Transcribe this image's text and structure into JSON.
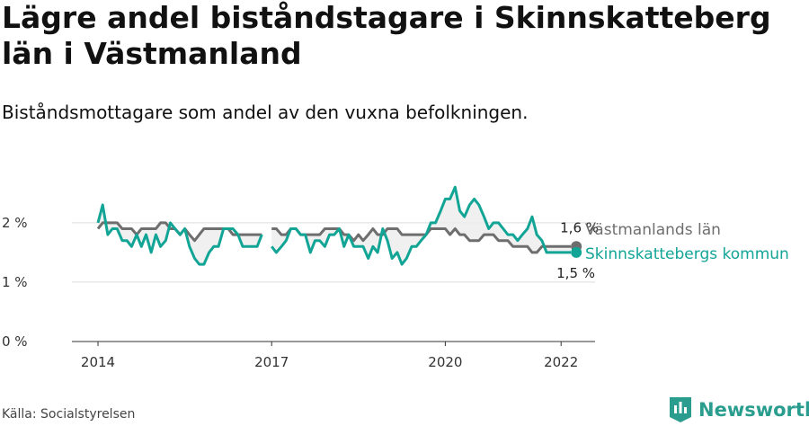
{
  "header": {
    "title": "Lägre andel biståndstagare i Skinnskatteberg län i Västmanland",
    "subtitle": "Biståndsmottagare som andel av den vuxna befolkningen."
  },
  "footer": {
    "source": "Källa: Socialstyrelsen",
    "brand": "Newsworthy"
  },
  "colors": {
    "lan": "#6e6e6e",
    "kommun": "#12a596",
    "grid": "#dddddd",
    "fill": "#ececec"
  },
  "chart_data": {
    "type": "line",
    "ylim": [
      0,
      2.8
    ],
    "yticks": [
      {
        "v": 0,
        "label": "0 %"
      },
      {
        "v": 1,
        "label": "1 %"
      },
      {
        "v": 2,
        "label": "2 %"
      }
    ],
    "xlim": [
      2014.0,
      2022.7
    ],
    "xticks": [
      {
        "v": 2014,
        "label": "2014"
      },
      {
        "v": 2017,
        "label": "2017"
      },
      {
        "v": 2020,
        "label": "2020"
      },
      {
        "v": 2022,
        "label": "2022"
      }
    ],
    "series": [
      {
        "key": "lan",
        "name": "Västmanlands län",
        "end_label": "1,6 %",
        "x": [
          2014.0,
          2014.08,
          2014.17,
          2014.25,
          2014.33,
          2014.42,
          2014.5,
          2014.58,
          2014.67,
          2014.75,
          2014.83,
          2014.92,
          2015.0,
          2015.08,
          2015.17,
          2015.25,
          2015.33,
          2015.42,
          2015.5,
          2015.58,
          2015.67,
          2015.75,
          2015.83,
          2015.92,
          2016.0,
          2016.08,
          2016.17,
          2016.25,
          2016.33,
          2016.42,
          2016.5,
          2016.58,
          2016.67,
          2016.75,
          2016.83,
          null,
          2017.0,
          2017.08,
          2017.17,
          2017.25,
          2017.33,
          2017.42,
          2017.5,
          2017.58,
          2017.67,
          2017.75,
          2017.83,
          2017.92,
          2018.0,
          2018.08,
          2018.17,
          2018.25,
          2018.33,
          2018.42,
          2018.5,
          2018.58,
          2018.67,
          2018.75,
          2018.83,
          2018.92,
          2019.0,
          2019.08,
          2019.17,
          2019.25,
          2019.33,
          2019.42,
          2019.5,
          2019.58,
          2019.67,
          2019.75,
          2019.83,
          2019.92,
          2020.0,
          2020.08,
          2020.17,
          2020.25,
          2020.33,
          2020.42,
          2020.5,
          2020.58,
          2020.67,
          2020.75,
          2020.83,
          2020.92,
          2021.0,
          2021.08,
          2021.17,
          2021.25,
          2021.33,
          2021.42,
          2021.5,
          2021.58,
          2021.67,
          2021.75,
          2021.83,
          2021.92,
          2022.0,
          2022.08,
          2022.17
        ],
        "y": [
          1.9,
          2.0,
          2.0,
          2.0,
          2.0,
          1.9,
          1.9,
          1.9,
          1.8,
          1.9,
          1.9,
          1.9,
          1.9,
          2.0,
          2.0,
          1.9,
          1.9,
          1.8,
          1.9,
          1.8,
          1.7,
          1.8,
          1.9,
          1.9,
          1.9,
          1.9,
          1.9,
          1.9,
          1.8,
          1.8,
          1.8,
          1.8,
          1.8,
          1.8,
          1.8,
          null,
          1.9,
          1.9,
          1.8,
          1.8,
          1.9,
          1.9,
          1.8,
          1.8,
          1.8,
          1.8,
          1.8,
          1.9,
          1.9,
          1.9,
          1.9,
          1.8,
          1.8,
          1.7,
          1.8,
          1.7,
          1.8,
          1.9,
          1.8,
          1.8,
          1.9,
          1.9,
          1.9,
          1.8,
          1.8,
          1.8,
          1.8,
          1.8,
          1.8,
          1.9,
          1.9,
          1.9,
          1.9,
          1.8,
          1.9,
          1.8,
          1.8,
          1.7,
          1.7,
          1.7,
          1.8,
          1.8,
          1.8,
          1.7,
          1.7,
          1.7,
          1.6,
          1.6,
          1.6,
          1.6,
          1.5,
          1.5,
          1.6,
          1.6,
          1.6,
          1.6,
          1.6,
          1.6,
          1.6
        ]
      },
      {
        "key": "kommun",
        "name": "Skinnskattebergs kommun",
        "end_label": "1,5 %",
        "x": [
          2014.0,
          2014.08,
          2014.17,
          2014.25,
          2014.33,
          2014.42,
          2014.5,
          2014.58,
          2014.67,
          2014.75,
          2014.83,
          2014.92,
          2015.0,
          2015.08,
          2015.17,
          2015.25,
          2015.33,
          2015.42,
          2015.5,
          2015.58,
          2015.67,
          2015.75,
          2015.83,
          2015.92,
          2016.0,
          2016.08,
          2016.17,
          2016.25,
          2016.33,
          2016.42,
          2016.5,
          2016.58,
          2016.67,
          2016.75,
          2016.83,
          null,
          2017.0,
          2017.08,
          2017.17,
          2017.25,
          2017.33,
          2017.42,
          2017.5,
          2017.58,
          2017.67,
          2017.75,
          2017.83,
          2017.92,
          2018.0,
          2018.08,
          2018.17,
          2018.25,
          2018.33,
          2018.42,
          2018.5,
          2018.58,
          2018.67,
          2018.75,
          2018.83,
          2018.92,
          2019.0,
          2019.08,
          2019.17,
          2019.25,
          2019.33,
          2019.42,
          2019.5,
          2019.58,
          2019.67,
          2019.75,
          2019.83,
          2019.92,
          2020.0,
          2020.08,
          2020.17,
          2020.25,
          2020.33,
          2020.42,
          2020.5,
          2020.58,
          2020.67,
          2020.75,
          2020.83,
          2020.92,
          2021.0,
          2021.08,
          2021.17,
          2021.25,
          2021.33,
          2021.42,
          2021.5,
          2021.58,
          2021.67,
          2021.75,
          2021.83,
          2021.92,
          2022.0,
          2022.08,
          2022.17
        ],
        "y": [
          2.0,
          2.3,
          1.8,
          1.9,
          1.9,
          1.7,
          1.7,
          1.6,
          1.8,
          1.6,
          1.8,
          1.5,
          1.8,
          1.6,
          1.7,
          2.0,
          1.9,
          1.8,
          1.9,
          1.6,
          1.4,
          1.3,
          1.3,
          1.5,
          1.6,
          1.6,
          1.9,
          1.9,
          1.9,
          1.8,
          1.6,
          1.6,
          1.6,
          1.6,
          1.8,
          null,
          1.6,
          1.5,
          1.6,
          1.7,
          1.9,
          1.9,
          1.8,
          1.8,
          1.5,
          1.7,
          1.7,
          1.6,
          1.8,
          1.8,
          1.9,
          1.6,
          1.8,
          1.6,
          1.6,
          1.6,
          1.4,
          1.6,
          1.5,
          1.9,
          1.7,
          1.4,
          1.5,
          1.3,
          1.4,
          1.6,
          1.6,
          1.7,
          1.8,
          2.0,
          2.0,
          2.2,
          2.4,
          2.4,
          2.6,
          2.2,
          2.1,
          2.3,
          2.4,
          2.3,
          2.1,
          1.9,
          2.0,
          2.0,
          1.9,
          1.8,
          1.8,
          1.7,
          1.8,
          1.9,
          2.1,
          1.8,
          1.7,
          1.5,
          1.5,
          1.5,
          1.5,
          1.5,
          1.5
        ]
      }
    ]
  }
}
